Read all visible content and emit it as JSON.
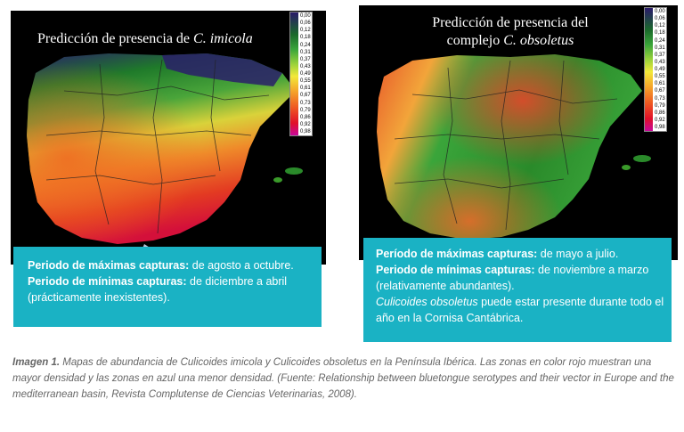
{
  "map_left": {
    "title_prefix": "Predicción de presencia de ",
    "title_species": "C. imicola",
    "scale_labels": [
      "0,00",
      "0,06",
      "0,12",
      "0,18",
      "0,24",
      "0,31",
      "0,37",
      "0,43",
      "0,49",
      "0,55",
      "0,61",
      "0,67",
      "0,73",
      "0,79",
      "0,86",
      "0,92",
      "0,98"
    ]
  },
  "map_right": {
    "title_line1": "Predicción de presencia del",
    "title_line2_prefix": "complejo ",
    "title_species": "C. obsoletus",
    "scale_labels": [
      "0,00",
      "0,06",
      "0,12",
      "0,18",
      "0,24",
      "0,31",
      "0,37",
      "0,43",
      "0,49",
      "0,55",
      "0,61",
      "0,67",
      "0,73",
      "0,79",
      "0,86",
      "0,92",
      "0,98"
    ]
  },
  "info_left": {
    "max_label": "Periodo de máximas capturas:",
    "max_value": " de agosto a octubre.",
    "min_label": "Periodo de mínimas capturas:",
    "min_value": " de diciembre a abril",
    "min_note": "(prácticamente inexistentes)."
  },
  "info_right": {
    "max_label": "Período de máximas capturas:",
    "max_value": " de mayo a julio.",
    "min_label": "Periodo de mínimas capturas:",
    "min_value": " de noviembre a marzo",
    "min_note": "(relativamente abundantes).",
    "note_species": "Culicoides obsoletus",
    "note_text": " puede estar presente durante todo el año en la Cornisa Cantábrica."
  },
  "caption": {
    "label": "Imagen 1.",
    "text": " Mapas de abundancia de Culicoides imicola y Culicoides obsoletus en la Península Ibérica. Las zonas en color rojo muestran una mayor densidad y las zonas en azul una menor densidad. (Fuente: Relationship between bluetongue serotypes and their vector in Europe and the mediterranean basin, Revista Complutense de Ciencias Veterinarias, 2008)."
  },
  "colors": {
    "info_box": "#1ab2c4",
    "low_density": "#2a1a6a",
    "high_density": "#e0102a"
  }
}
